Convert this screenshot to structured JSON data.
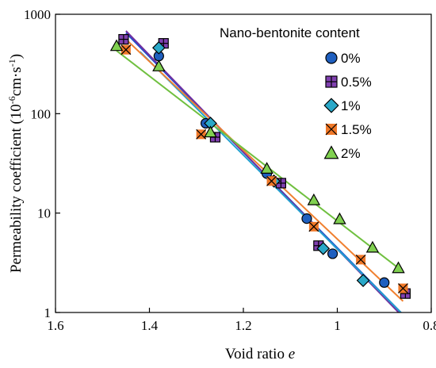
{
  "chart_data": {
    "type": "scatter",
    "xlabel_text": "Void ratio ",
    "xlabel_italic": "e",
    "ylabel_text": "Permeability coefficient (10",
    "ylabel_sup1": "-6",
    "ylabel_mid": "cm·s",
    "ylabel_sup2": "-1",
    "ylabel_end": ")",
    "x_reversed": true,
    "xlim": [
      0.8,
      1.6
    ],
    "ylim": [
      1,
      1000
    ],
    "y_scale": "log",
    "x_ticks": [
      "1.6",
      "1.4",
      "1.2",
      "1",
      "0.8"
    ],
    "y_ticks": [
      "1",
      "10",
      "100",
      "1000"
    ],
    "legend_title": "Nano-bentonite content",
    "legend_position": "top-right",
    "series": [
      {
        "name": "0%",
        "marker": "circle",
        "fill": "#1f5fbf",
        "line_color": "#1f4fd0",
        "fit": [
          [
            1.45,
            650
          ],
          [
            0.86,
            0.95
          ]
        ],
        "points": [
          [
            1.38,
            380
          ],
          [
            1.28,
            80
          ],
          [
            1.15,
            25
          ],
          [
            1.065,
            8.8
          ],
          [
            1.01,
            3.9
          ],
          [
            0.9,
            2.0
          ]
        ]
      },
      {
        "name": "0.5%",
        "marker": "plus-square",
        "fill": "#8040b0",
        "line_color": "#7030a0",
        "fit": [
          [
            1.45,
            680
          ],
          [
            0.86,
            0.9
          ]
        ],
        "points": [
          [
            1.455,
            560
          ],
          [
            1.37,
            510
          ],
          [
            1.26,
            58
          ],
          [
            1.12,
            20
          ],
          [
            1.04,
            4.7
          ],
          [
            0.855,
            1.55
          ]
        ]
      },
      {
        "name": "1%",
        "marker": "diamond",
        "fill": "#2aa8c8",
        "line_color": "#20a0d0",
        "fit": [
          [
            1.42,
            420
          ],
          [
            0.86,
            0.95
          ]
        ],
        "points": [
          [
            1.38,
            460
          ],
          [
            1.27,
            80
          ],
          [
            1.135,
            21
          ],
          [
            1.03,
            4.4
          ],
          [
            0.945,
            2.1
          ]
        ]
      },
      {
        "name": "1.5%",
        "marker": "x-square",
        "fill": "#f07828",
        "line_color": "#f08030",
        "fit": [
          [
            1.45,
            560
          ],
          [
            0.86,
            1.3
          ]
        ],
        "points": [
          [
            1.45,
            440
          ],
          [
            1.29,
            62
          ],
          [
            1.14,
            21
          ],
          [
            1.05,
            7.3
          ],
          [
            0.95,
            3.4
          ],
          [
            0.86,
            1.75
          ]
        ]
      },
      {
        "name": "2%",
        "marker": "triangle",
        "fill": "#80d050",
        "line_color": "#70c040",
        "fit": [
          [
            1.47,
            430
          ],
          [
            0.87,
            2.8
          ]
        ],
        "points": [
          [
            1.47,
            480
          ],
          [
            1.38,
            300
          ],
          [
            1.27,
            65
          ],
          [
            1.15,
            28
          ],
          [
            1.05,
            13.5
          ],
          [
            0.995,
            8.7
          ],
          [
            0.925,
            4.5
          ],
          [
            0.87,
            2.8
          ]
        ]
      }
    ]
  }
}
